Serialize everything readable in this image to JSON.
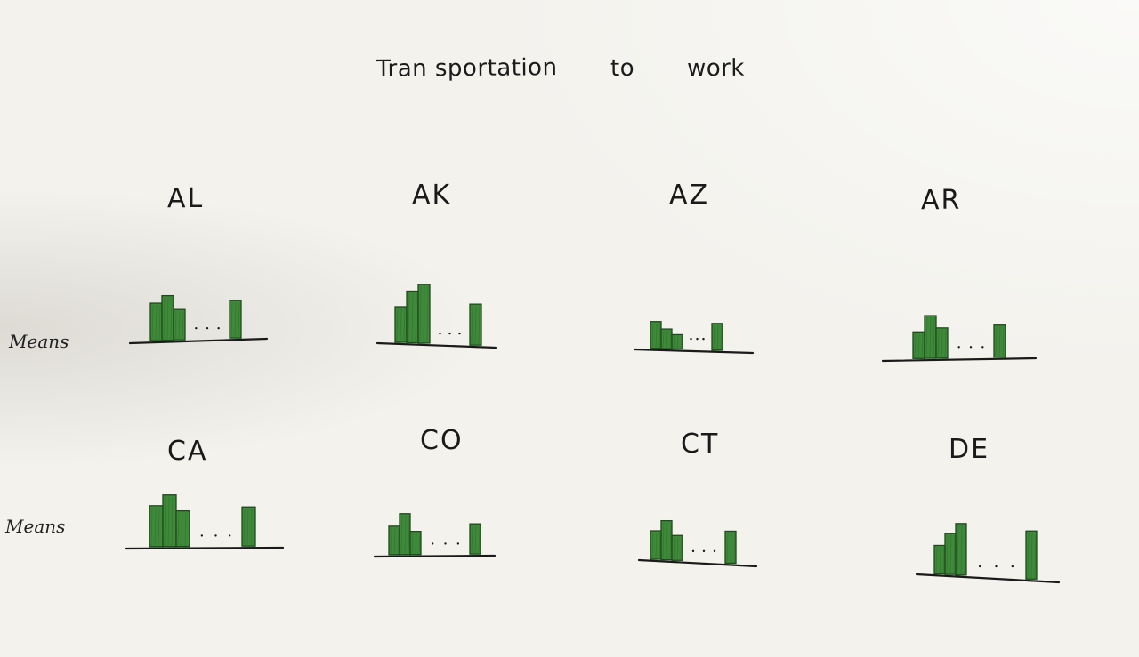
{
  "title_words": [
    "Tran sportation",
    "to",
    "work"
  ],
  "row_labels": [
    "Means",
    "Means"
  ],
  "colors": {
    "bar_fill": "#3f8a3a",
    "bar_edge": "#1f4a1d",
    "ink": "#1a1a1a"
  },
  "chart_data": [
    {
      "type": "bar",
      "title": "AL",
      "values": [
        42,
        50,
        34,
        42
      ]
    },
    {
      "type": "bar",
      "title": "AK",
      "values": [
        40,
        58,
        66,
        46
      ]
    },
    {
      "type": "bar",
      "title": "AZ",
      "values": [
        30,
        22,
        16,
        30
      ]
    },
    {
      "type": "bar",
      "title": "AR",
      "values": [
        30,
        48,
        34,
        36
      ]
    },
    {
      "type": "bar",
      "title": "CA",
      "values": [
        46,
        58,
        40,
        44
      ]
    },
    {
      "type": "bar",
      "title": "CO",
      "values": [
        32,
        46,
        26,
        34
      ]
    },
    {
      "type": "bar",
      "title": "CT",
      "values": [
        32,
        44,
        28,
        36
      ]
    },
    {
      "type": "bar",
      "title": "DE",
      "values": [
        32,
        46,
        58,
        54
      ]
    }
  ]
}
